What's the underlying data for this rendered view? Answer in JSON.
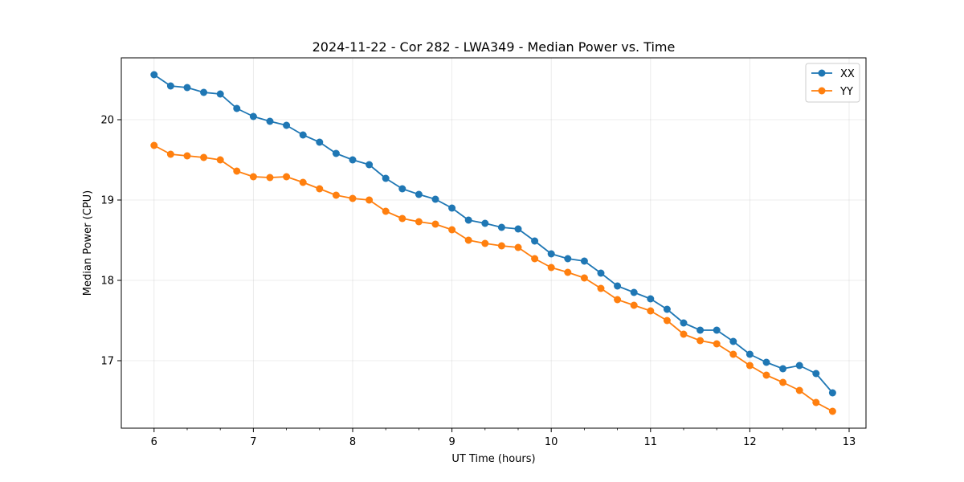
{
  "chart_data": {
    "type": "line",
    "title": "2024-11-22 - Cor 282 - LWA349 - Median Power vs. Time",
    "xlabel": "UT Time (hours)",
    "ylabel": "Median Power (CPU)",
    "xlim": [
      5.67,
      13.17
    ],
    "ylim": [
      16.16,
      20.77
    ],
    "xticks": [
      6,
      7,
      8,
      9,
      10,
      11,
      12,
      13
    ],
    "yticks": [
      17,
      18,
      19,
      20
    ],
    "grid": true,
    "legend_position": "top-right",
    "x": [
      6.0,
      6.1667,
      6.3333,
      6.5,
      6.6667,
      6.8333,
      7.0,
      7.1667,
      7.3333,
      7.5,
      7.6667,
      7.8333,
      8.0,
      8.1667,
      8.3333,
      8.5,
      8.6667,
      8.8333,
      9.0,
      9.1667,
      9.3333,
      9.5,
      9.6667,
      9.8333,
      10.0,
      10.1667,
      10.3333,
      10.5,
      10.6667,
      10.8333,
      11.0,
      11.1667,
      11.3333,
      11.5,
      11.6667,
      11.8333,
      12.0,
      12.1667,
      12.3333,
      12.5,
      12.6667,
      12.8333
    ],
    "series": [
      {
        "name": "XX",
        "color": "#1f77b4",
        "values": [
          20.56,
          20.42,
          20.4,
          20.34,
          20.32,
          20.14,
          20.04,
          19.98,
          19.93,
          19.81,
          19.72,
          19.58,
          19.5,
          19.44,
          19.27,
          19.14,
          19.07,
          19.01,
          18.9,
          18.75,
          18.71,
          18.66,
          18.64,
          18.49,
          18.33,
          18.27,
          18.24,
          18.09,
          17.93,
          17.85,
          17.77,
          17.64,
          17.47,
          17.38,
          17.38,
          17.24,
          17.08,
          16.98,
          16.9,
          16.94,
          16.84,
          16.6
        ]
      },
      {
        "name": "YY",
        "color": "#ff7f0e",
        "values": [
          19.68,
          19.57,
          19.55,
          19.53,
          19.5,
          19.36,
          19.29,
          19.28,
          19.29,
          19.22,
          19.14,
          19.06,
          19.02,
          19.0,
          18.86,
          18.77,
          18.73,
          18.7,
          18.63,
          18.5,
          18.46,
          18.43,
          18.41,
          18.27,
          18.16,
          18.1,
          18.03,
          17.9,
          17.76,
          17.69,
          17.62,
          17.5,
          17.33,
          17.25,
          17.21,
          17.08,
          16.94,
          16.82,
          16.73,
          16.63,
          16.48,
          16.37
        ]
      }
    ]
  }
}
